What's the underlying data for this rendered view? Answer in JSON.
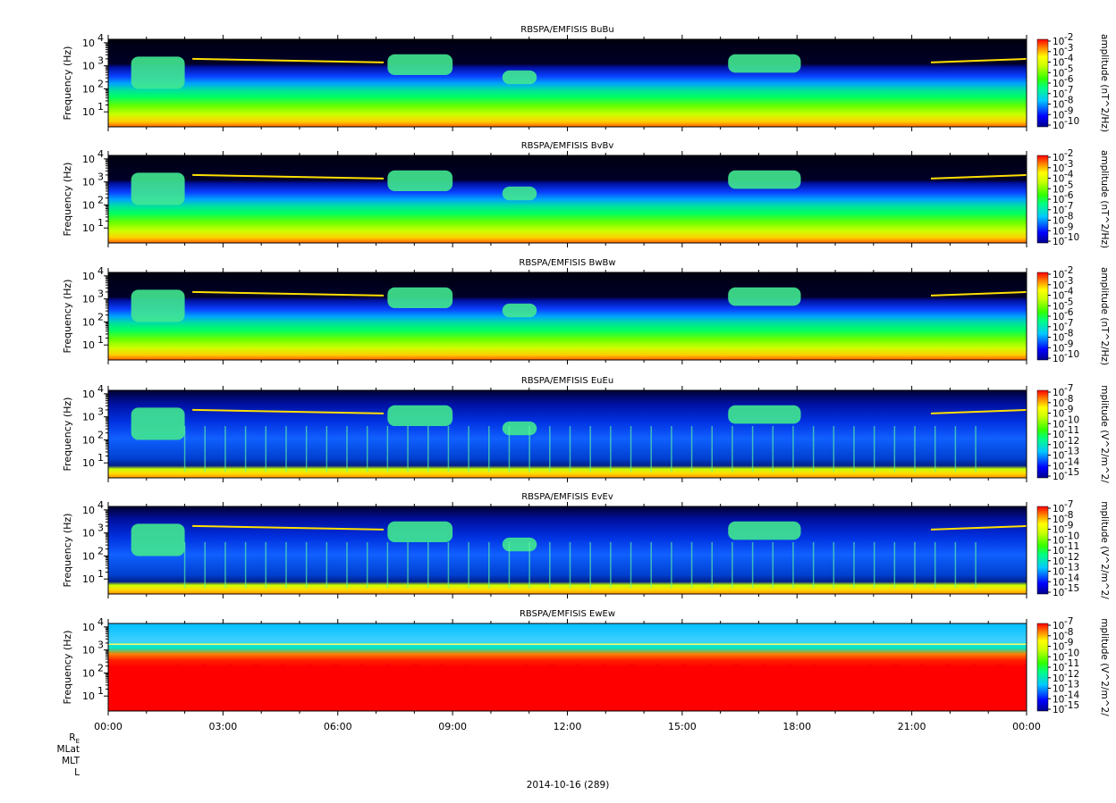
{
  "chart_data": [
    {
      "type": "heatmap",
      "title": "RBSPA/EMFISIS  BuBu",
      "ylabel": "Frequency (Hz)",
      "yscale": "log",
      "yticks": [
        "10",
        "10",
        "10",
        "10"
      ],
      "ytick_exps": [
        "1",
        "2",
        "3",
        "4"
      ],
      "colorbar": {
        "label": "amplitude (nT^2/Hz)",
        "tick_mantissa": "10",
        "tick_exps": [
          "-2",
          "-3",
          "-4",
          "-5",
          "-6",
          "-7",
          "-8",
          "-9",
          "-10"
        ],
        "range": [
          -10,
          -2
        ]
      },
      "style": "B"
    },
    {
      "type": "heatmap",
      "title": "RBSPA/EMFISIS  BvBv",
      "ylabel": "Frequency (Hz)",
      "yscale": "log",
      "yticks": [
        "10",
        "10",
        "10",
        "10"
      ],
      "ytick_exps": [
        "1",
        "2",
        "3",
        "4"
      ],
      "colorbar": {
        "label": "amplitude (nT^2/Hz)",
        "tick_mantissa": "10",
        "tick_exps": [
          "-2",
          "-3",
          "-4",
          "-5",
          "-6",
          "-7",
          "-8",
          "-9",
          "-10"
        ],
        "range": [
          -10,
          -2
        ]
      },
      "style": "B"
    },
    {
      "type": "heatmap",
      "title": "RBSPA/EMFISIS  BwBw",
      "ylabel": "Frequency (Hz)",
      "yscale": "log",
      "yticks": [
        "10",
        "10",
        "10",
        "10"
      ],
      "ytick_exps": [
        "1",
        "2",
        "3",
        "4"
      ],
      "colorbar": {
        "label": "amplitude (nT^2/Hz)",
        "tick_mantissa": "10",
        "tick_exps": [
          "-2",
          "-3",
          "-4",
          "-5",
          "-6",
          "-7",
          "-8",
          "-9",
          "-10"
        ],
        "range": [
          -10,
          -2
        ]
      },
      "style": "B"
    },
    {
      "type": "heatmap",
      "title": "RBSPA/EMFISIS  EuEu",
      "ylabel": "Frequency (Hz)",
      "yscale": "log",
      "yticks": [
        "10",
        "10",
        "10",
        "10"
      ],
      "ytick_exps": [
        "1",
        "2",
        "3",
        "4"
      ],
      "colorbar": {
        "label": "mplitude (V^2/m^2/",
        "tick_mantissa": "10",
        "tick_exps": [
          "-7",
          "-8",
          "-9",
          "-10",
          "-11",
          "-12",
          "-13",
          "-14",
          "-15"
        ],
        "range": [
          -15,
          -7
        ]
      },
      "style": "E"
    },
    {
      "type": "heatmap",
      "title": "RBSPA/EMFISIS  EvEv",
      "ylabel": "Frequency (Hz)",
      "yscale": "log",
      "yticks": [
        "10",
        "10",
        "10",
        "10"
      ],
      "ytick_exps": [
        "1",
        "2",
        "3",
        "4"
      ],
      "colorbar": {
        "label": "mplitude (V^2/m^2/",
        "tick_mantissa": "10",
        "tick_exps": [
          "-7",
          "-8",
          "-9",
          "-10",
          "-11",
          "-12",
          "-13",
          "-14",
          "-15"
        ],
        "range": [
          -15,
          -7
        ]
      },
      "style": "E"
    },
    {
      "type": "heatmap",
      "title": "RBSPA/EMFISIS  EwEw",
      "ylabel": "Frequency (Hz)",
      "yscale": "log",
      "yticks": [
        "10",
        "10",
        "10",
        "10"
      ],
      "ytick_exps": [
        "1",
        "2",
        "3",
        "4"
      ],
      "colorbar": {
        "label": "mplitude (V^2/m^2/",
        "tick_mantissa": "10",
        "tick_exps": [
          "-7",
          "-8",
          "-9",
          "-10",
          "-11",
          "-12",
          "-13",
          "-14",
          "-15"
        ],
        "range": [
          -15,
          -7
        ]
      },
      "style": "Ew"
    }
  ],
  "x_axis": {
    "ticks": [
      "00:00",
      "03:00",
      "06:00",
      "09:00",
      "12:00",
      "15:00",
      "18:00",
      "21:00",
      "00:00"
    ]
  },
  "ephemeris_labels": [
    "R_E",
    "MLat",
    "MLT",
    "L"
  ],
  "date_label": "2014-10-16 (289)"
}
